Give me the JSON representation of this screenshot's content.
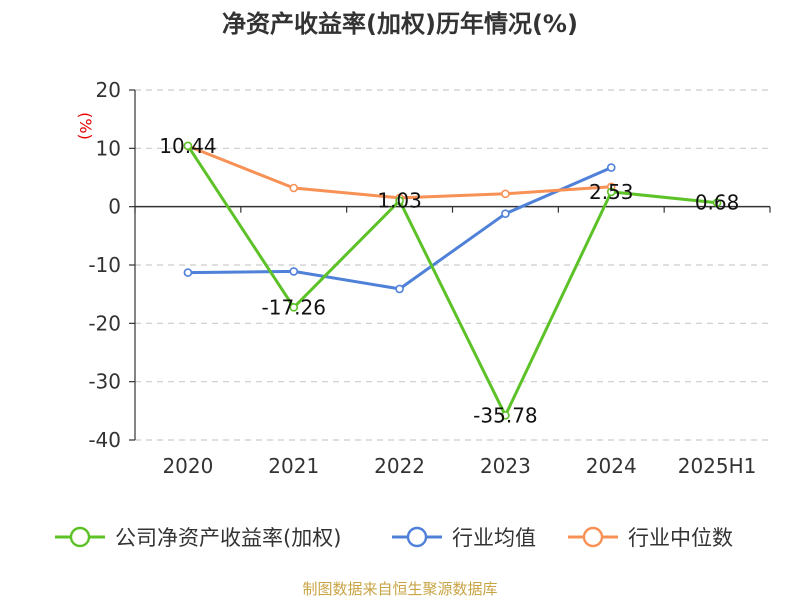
{
  "chart_data": {
    "type": "line",
    "title": "净资产收益率(加权)历年情况(%)",
    "ylabel": "(%)",
    "xlabel": "",
    "categories": [
      "2020",
      "2021",
      "2022",
      "2023",
      "2024",
      "2025H1"
    ],
    "ylim": [
      -40,
      20
    ],
    "yticks": [
      20,
      10,
      0,
      -10,
      -20,
      -30,
      -40
    ],
    "grid": true,
    "legend_position": "bottom",
    "series": [
      {
        "name": "公司净资产收益率(加权)",
        "color": "#5cc227",
        "values": [
          10.44,
          -17.26,
          1.03,
          -35.78,
          2.53,
          0.68
        ],
        "labels": [
          "10.44",
          "-17.26",
          "1.03",
          "-35.78",
          "2.53",
          "0.68"
        ]
      },
      {
        "name": "行业均值",
        "color": "#4f81d9",
        "values": [
          -11.3,
          -11.1,
          -14.1,
          -1.2,
          6.7,
          null
        ]
      },
      {
        "name": "行业中位数",
        "color": "#f79155",
        "values": [
          10.4,
          3.2,
          1.5,
          2.2,
          3.4,
          null
        ]
      }
    ],
    "source": "制图数据来自恒生聚源数据库"
  }
}
